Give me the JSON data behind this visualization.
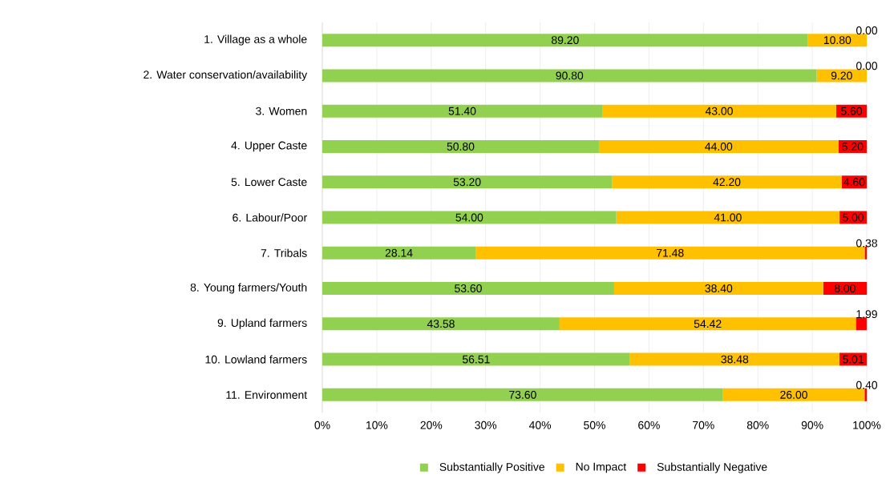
{
  "chart_data": {
    "type": "bar",
    "orientation": "horizontal",
    "stacked": true,
    "grid": "x",
    "legend": "bottom",
    "categories": [
      "1.        Village as a whole",
      "2.        Water conservation/availability",
      "3.        Women",
      "4.        Upper Caste",
      "5.        Lower Caste",
      "6.        Labour/Poor",
      "7.        Tribals",
      "8.        Young farmers/Youth",
      "9.        Upland farmers",
      "10.        Lowland farmers",
      "11.        Environment"
    ],
    "series": [
      {
        "name": "Substantially Positive",
        "color": "#92d050",
        "values": [
          89.2,
          90.8,
          51.4,
          50.8,
          53.2,
          54.0,
          28.14,
          53.6,
          43.58,
          56.51,
          73.6
        ],
        "value_labels": [
          "89.20",
          "90.80",
          "51.40",
          "50.80",
          "53.20",
          "54.00",
          "28.14",
          "53.60",
          "43.58",
          "56.51",
          "73.60"
        ]
      },
      {
        "name": "No  Impact",
        "color": "#ffc000",
        "values": [
          10.8,
          9.2,
          43.0,
          44.0,
          42.2,
          41.0,
          71.48,
          38.4,
          54.42,
          38.48,
          26.0
        ],
        "value_labels": [
          "10.80",
          "9.20",
          "43.00",
          "44.00",
          "42.20",
          "41.00",
          "71.48",
          "38.40",
          "54.42",
          "38.48",
          "26.00"
        ]
      },
      {
        "name": "Substantially Negative",
        "color": "#ff0000",
        "values": [
          0.0,
          0.0,
          5.6,
          5.2,
          4.6,
          5.0,
          0.38,
          8.0,
          1.99,
          5.01,
          0.4
        ],
        "value_labels": [
          "0.00",
          "0.00",
          "5.60",
          "5.20",
          "4.60",
          "5.00",
          "0.38",
          "8.00",
          "1.99",
          "5.01",
          "0.40"
        ]
      }
    ],
    "xlim": [
      0,
      100
    ],
    "xticks": [
      {
        "value": 0,
        "label": "0%"
      },
      {
        "value": 10,
        "label": "10%"
      },
      {
        "value": 20,
        "label": "20%"
      },
      {
        "value": 30,
        "label": "30%"
      },
      {
        "value": 40,
        "label": "40%"
      },
      {
        "value": 50,
        "label": "50%"
      },
      {
        "value": 60,
        "label": "60%"
      },
      {
        "value": 70,
        "label": "70%"
      },
      {
        "value": 80,
        "label": "80%"
      },
      {
        "value": 90,
        "label": "90%"
      },
      {
        "value": 100,
        "label": "100%"
      }
    ]
  }
}
